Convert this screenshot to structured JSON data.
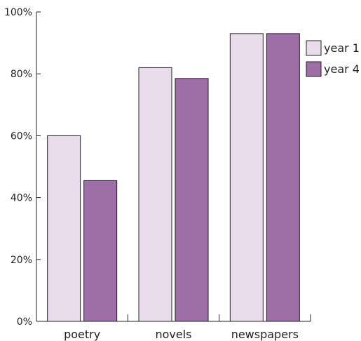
{
  "chart_data": {
    "type": "bar",
    "categories": [
      "poetry",
      "novels",
      "newspapers"
    ],
    "series": [
      {
        "name": "year 1",
        "values": [
          60,
          82,
          93
        ],
        "color": "#e8dcea"
      },
      {
        "name": "year 4",
        "values": [
          45.5,
          78.5,
          93
        ],
        "color": "#9e6fa7"
      }
    ],
    "ylim": [
      0,
      100
    ],
    "yticks": [
      0,
      20,
      40,
      60,
      80,
      100
    ],
    "ytick_labels": [
      "0%",
      "20%",
      "40%",
      "60%",
      "80%",
      "100%"
    ],
    "title": "",
    "xlabel": "",
    "ylabel": "",
    "legend_position": "top-right",
    "grid": false
  }
}
